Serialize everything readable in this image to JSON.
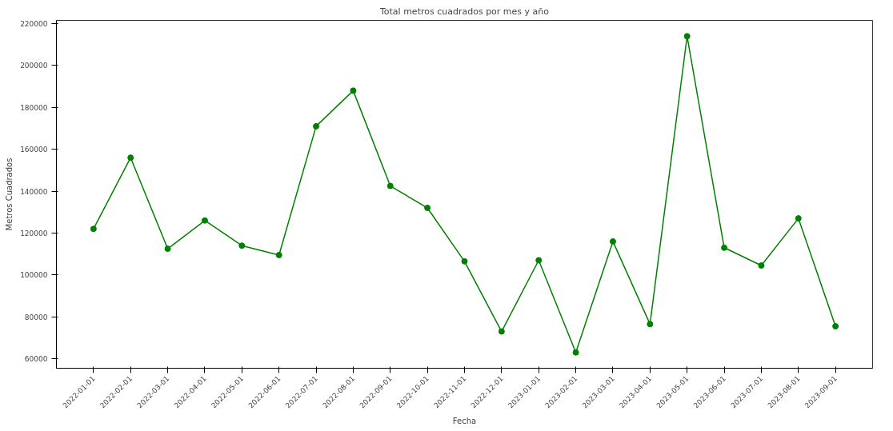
{
  "chart_data": {
    "type": "line",
    "title": "Total metros cuadrados por mes y año",
    "xlabel": "Fecha",
    "ylabel": "Metros Cuadrados",
    "categories": [
      "2022-01-01",
      "2022-02-01",
      "2022-03-01",
      "2022-04-01",
      "2022-05-01",
      "2022-06-01",
      "2022-07-01",
      "2022-08-01",
      "2022-09-01",
      "2022-10-01",
      "2022-11-01",
      "2022-12-01",
      "2023-01-01",
      "2023-02-01",
      "2023-03-01",
      "2023-04-01",
      "2023-05-01",
      "2023-06-01",
      "2023-07-01",
      "2023-08-01",
      "2023-09-01"
    ],
    "series": [
      {
        "color": "#008000",
        "values": [
          122000,
          156000,
          112500,
          126000,
          114000,
          109500,
          171000,
          188000,
          142500,
          132000,
          106500,
          73000,
          107000,
          63000,
          116000,
          76500,
          214000,
          113000,
          104500,
          127000,
          75500
        ]
      }
    ],
    "ylim": [
      55450,
      221550
    ],
    "yticks": [
      60000,
      80000,
      100000,
      120000,
      140000,
      160000,
      180000,
      200000,
      220000
    ],
    "grid": false,
    "marker": "circle",
    "line_style": "solid"
  }
}
